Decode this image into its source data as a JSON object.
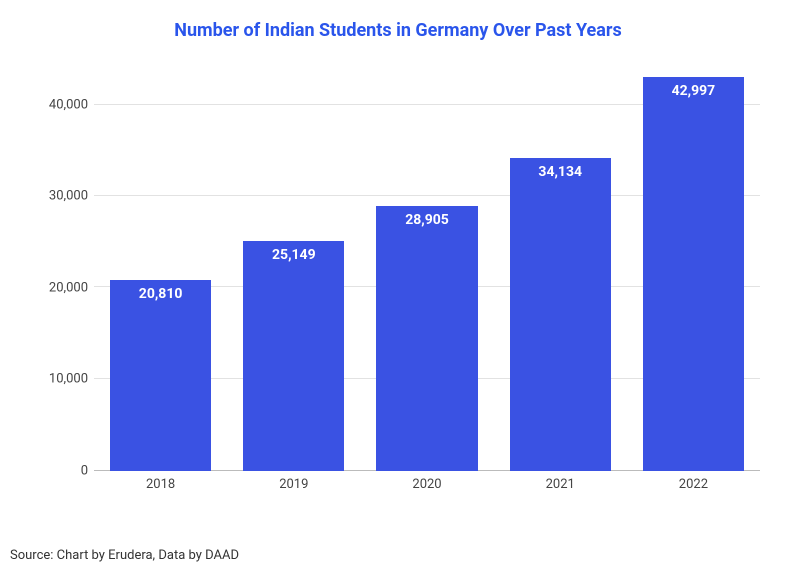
{
  "chart": {
    "type": "bar",
    "title": "Number of Indian Students in Germany Over Past Years",
    "title_color": "#2a55eb",
    "title_fontsize": 18,
    "title_fontweight": 700,
    "categories": [
      "2018",
      "2019",
      "2020",
      "2021",
      "2022"
    ],
    "values": [
      20810,
      25149,
      28905,
      34134,
      42997
    ],
    "value_labels": [
      "20,810",
      "25,149",
      "28,905",
      "34,134",
      "42,997"
    ],
    "bar_color": "#3a52e3",
    "bar_label_color": "#ffffff",
    "bar_label_fontsize": 14,
    "bar_label_fontweight": 700,
    "bar_width_ratio": 0.76,
    "ylim": [
      0,
      45000
    ],
    "ytick_step": 10000,
    "yticks": [
      0,
      10000,
      20000,
      30000,
      40000
    ],
    "ytick_labels": [
      "0",
      "10,000",
      "20,000",
      "30,000",
      "40,000"
    ],
    "axis_fontsize": 13,
    "axis_color": "#444444",
    "grid_color": "#e2e2e2",
    "baseline_color": "#bbbbbb",
    "background_color": "#ffffff",
    "source_text": "Source: Chart by Erudera, Data by DAAD",
    "source_fontsize": 13,
    "source_color": "#333333"
  }
}
